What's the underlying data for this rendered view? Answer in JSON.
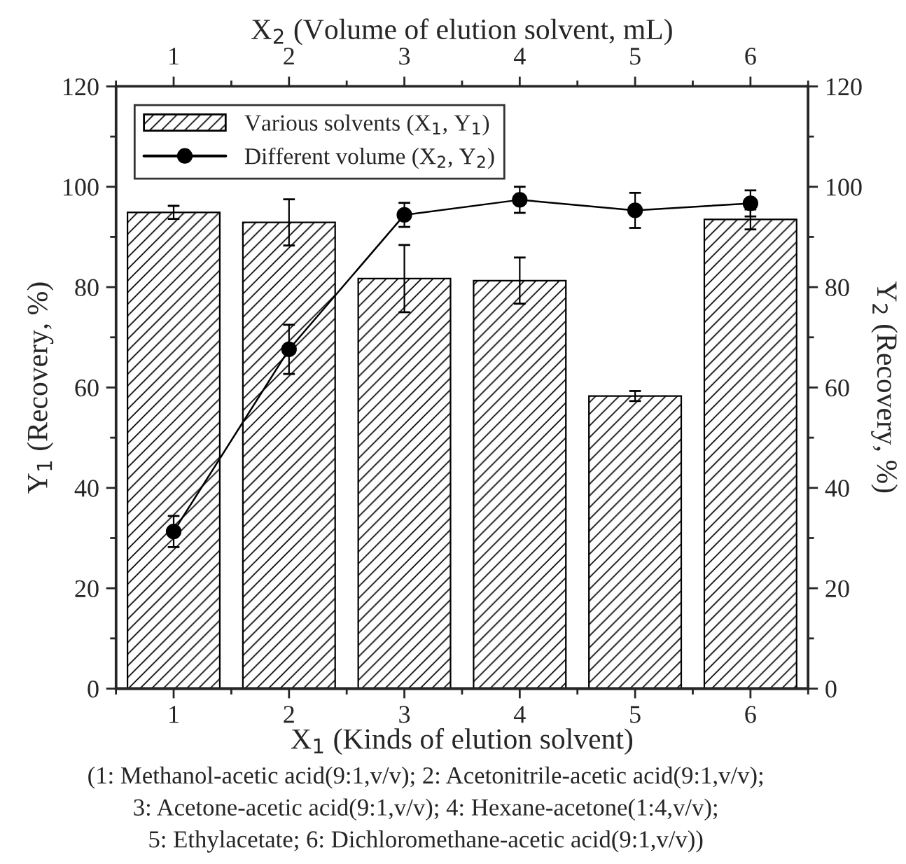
{
  "chart_data": {
    "type": "bar",
    "xlabel": "X$_{1}$ (Kinds of elution solvent)",
    "ylabel": "Y$_{1}$ (Recovery, %)",
    "y2label": "Y$_{2}$ (Recovery, %)",
    "x2label": "X$_{2}$ (Volume of elution solvent, mL)",
    "xlim": [
      0.5,
      6.5
    ],
    "xticks": [
      1,
      2,
      3,
      4,
      5,
      6
    ],
    "x2lim": [
      0.5,
      6.5
    ],
    "x2ticks": [
      1,
      2,
      3,
      4,
      5,
      6
    ],
    "ylim": [
      0,
      120
    ],
    "yticks": [
      0,
      20,
      40,
      60,
      80,
      100,
      120
    ],
    "y2lim": [
      0,
      120
    ],
    "y2ticks": [
      0,
      20,
      40,
      60,
      80,
      100,
      120
    ],
    "legend": "top left",
    "grid": false,
    "series": [
      {
        "name": "Various solvents (X$_{1}$, Y$_{1}$)",
        "color": "#000000",
        "x": [
          1,
          2,
          3,
          4,
          5,
          6
        ],
        "values": [
          94.9,
          92.9,
          81.7,
          81.3,
          58.3,
          93.5
        ],
        "errors": [
          1.3,
          4.6,
          6.7,
          4.6,
          1.0,
          2.0
        ]
      },
      {
        "name": "Different volume (X$_{2}$, Y$_{2}$)",
        "type": "line",
        "color": "#000000",
        "marker": "circle",
        "line_style": "solid",
        "x": [
          1,
          2,
          3,
          4,
          5,
          6
        ],
        "values": [
          31.3,
          67.6,
          94.4,
          97.4,
          95.3,
          96.7
        ],
        "errors": [
          3.1,
          4.9,
          2.4,
          2.6,
          3.5,
          2.6
        ]
      }
    ],
    "annotations": [
      "(1: Methanol-acetic acid(9:1,v/v); 2: Acetonitrile-acetic acid(9:1,v/v);",
      "3: Acetone-acetic acid(9:1,v/v); 4: Hexane-acetone(1:4,v/v);",
      "5: Ethylacetate; 6: Dichloromethane-acetic acid(9:1,v/v))"
    ]
  }
}
